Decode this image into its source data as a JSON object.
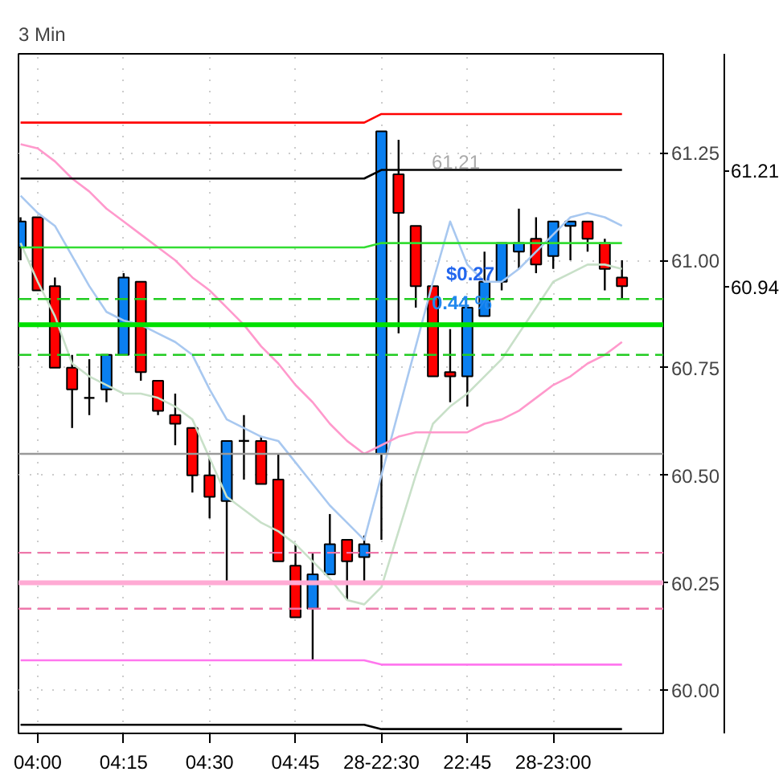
{
  "chart_data": {
    "type": "candlestick",
    "title": "3 Min",
    "categories": [
      null,
      "04:00",
      null,
      null,
      null,
      null,
      "04:15",
      null,
      null,
      null,
      null,
      "04:30",
      null,
      null,
      null,
      null,
      "04:45",
      null,
      null,
      null,
      null,
      "28-22:30",
      null,
      null,
      null,
      null,
      "22:45",
      null,
      null,
      null,
      null,
      "28-23:00",
      null,
      null,
      null,
      null
    ],
    "ohlc": [
      [
        61.03,
        61.1,
        61.0,
        61.09
      ],
      [
        61.1,
        61.1,
        60.93,
        60.93
      ],
      [
        60.94,
        60.96,
        60.75,
        60.75
      ],
      [
        60.75,
        60.78,
        60.61,
        60.7
      ],
      [
        60.68,
        60.77,
        60.64,
        60.68
      ],
      [
        60.7,
        60.78,
        60.67,
        60.78
      ],
      [
        60.78,
        60.97,
        60.78,
        60.96
      ],
      [
        60.95,
        60.95,
        60.72,
        60.74
      ],
      [
        60.72,
        60.72,
        60.64,
        60.65
      ],
      [
        60.64,
        60.69,
        60.57,
        60.62
      ],
      [
        60.61,
        60.61,
        60.46,
        60.5
      ],
      [
        60.5,
        60.54,
        60.4,
        60.45
      ],
      [
        60.44,
        60.58,
        60.25,
        60.58
      ],
      [
        60.58,
        60.64,
        60.49,
        60.58
      ],
      [
        60.58,
        60.59,
        60.48,
        60.48
      ],
      [
        60.49,
        60.55,
        60.3,
        60.3
      ],
      [
        60.29,
        60.34,
        60.17,
        60.17
      ],
      [
        60.19,
        60.32,
        60.07,
        60.27
      ],
      [
        60.27,
        60.41,
        60.27,
        60.34
      ],
      [
        60.35,
        60.35,
        60.21,
        60.3
      ],
      [
        60.31,
        60.36,
        60.25,
        60.34
      ],
      [
        60.55,
        61.3,
        60.35,
        61.3
      ],
      [
        61.2,
        61.28,
        60.83,
        61.11
      ],
      [
        61.08,
        61.08,
        60.89,
        60.94
      ],
      [
        60.94,
        60.94,
        60.73,
        60.73
      ],
      [
        60.74,
        60.84,
        60.67,
        60.73
      ],
      [
        60.73,
        60.89,
        60.66,
        60.89
      ],
      [
        60.87,
        61.02,
        60.87,
        60.95
      ],
      [
        60.95,
        61.04,
        60.93,
        61.04
      ],
      [
        61.02,
        61.12,
        60.98,
        61.04
      ],
      [
        61.05,
        61.1,
        60.97,
        60.99
      ],
      [
        61.01,
        61.09,
        60.98,
        61.09
      ],
      [
        61.08,
        61.09,
        61.0,
        61.09
      ],
      [
        61.09,
        61.09,
        61.02,
        61.05
      ],
      [
        61.04,
        61.05,
        60.93,
        60.98
      ],
      [
        60.96,
        61.0,
        60.91,
        60.94
      ]
    ],
    "colors": [
      "#0a7ff0",
      "#ff0000",
      "#ff0000",
      "#ff0000",
      "#000000",
      "#0a7ff0",
      "#0a7ff0",
      "#ff0000",
      "#ff0000",
      "#ff0000",
      "#ff0000",
      "#ff0000",
      "#0a7ff0",
      "#000000",
      "#ff0000",
      "#ff0000",
      "#ff0000",
      "#0a7ff0",
      "#0a7ff0",
      "#ff0000",
      "#0a7ff0",
      "#0a7ff0",
      "#ff0000",
      "#ff0000",
      "#ff0000",
      "#ff0000",
      "#0a7ff0",
      "#0a7ff0",
      "#0a7ff0",
      "#0a7ff0",
      "#ff0000",
      "#0a7ff0",
      "#0a7ff0",
      "#ff0000",
      "#ff0000",
      "#ff0000"
    ],
    "series": [
      {
        "type": "line",
        "color": "#a8c8f0",
        "values": [
          61.15,
          61.11,
          61.08,
          61.01,
          60.94,
          60.88,
          60.86,
          60.85,
          60.83,
          60.81,
          60.78,
          60.7,
          60.63,
          60.61,
          60.59,
          60.58,
          60.53,
          60.48,
          60.43,
          60.39,
          60.35,
          60.5,
          60.65,
          60.8,
          60.95,
          61.09,
          60.99,
          60.95,
          60.95,
          60.98,
          61.02,
          61.06,
          61.1,
          61.11,
          61.1,
          61.08
        ]
      },
      {
        "type": "line",
        "color": "#c8e0c8",
        "values": [
          61.04,
          60.95,
          60.87,
          60.76,
          60.73,
          60.71,
          60.69,
          60.69,
          60.68,
          60.66,
          60.63,
          60.54,
          60.45,
          60.42,
          60.39,
          60.37,
          60.34,
          60.3,
          60.26,
          60.21,
          60.2,
          60.24,
          60.37,
          60.5,
          60.62,
          60.66,
          60.69,
          60.73,
          60.77,
          60.83,
          60.89,
          60.95,
          60.97,
          60.99,
          60.99,
          60.98
        ]
      },
      {
        "type": "line",
        "color": "#ff99cc",
        "values": [
          61.27,
          61.26,
          61.23,
          61.19,
          61.16,
          61.12,
          61.09,
          61.06,
          61.03,
          61.0,
          60.96,
          60.93,
          60.89,
          60.85,
          60.8,
          60.76,
          60.71,
          60.67,
          60.62,
          60.58,
          60.55,
          60.57,
          60.59,
          60.6,
          60.6,
          60.6,
          60.6,
          60.62,
          60.63,
          60.65,
          60.68,
          60.71,
          60.73,
          60.76,
          60.78,
          60.81
        ]
      },
      {
        "type": "line",
        "color": "#ff0000",
        "values": [
          61.32,
          61.32,
          61.32,
          61.32,
          61.32,
          61.32,
          61.32,
          61.32,
          61.32,
          61.32,
          61.32,
          61.32,
          61.32,
          61.32,
          61.32,
          61.32,
          61.32,
          61.32,
          61.32,
          61.32,
          61.32,
          61.34,
          61.34,
          61.34,
          61.34,
          61.34,
          61.34,
          61.34,
          61.34,
          61.34,
          61.34,
          61.34,
          61.34,
          61.34,
          61.34,
          61.34
        ]
      },
      {
        "type": "line",
        "color": "#000000",
        "values": [
          61.19,
          61.19,
          61.19,
          61.19,
          61.19,
          61.19,
          61.19,
          61.19,
          61.19,
          61.19,
          61.19,
          61.19,
          61.19,
          61.19,
          61.19,
          61.19,
          61.19,
          61.19,
          61.19,
          61.19,
          61.19,
          61.21,
          61.21,
          61.21,
          61.21,
          61.21,
          61.21,
          61.21,
          61.21,
          61.21,
          61.21,
          61.21,
          61.21,
          61.21,
          61.21,
          61.21
        ]
      },
      {
        "type": "line",
        "color": "#33dd33",
        "values": [
          61.03,
          61.03,
          61.03,
          61.03,
          61.03,
          61.03,
          61.03,
          61.03,
          61.03,
          61.03,
          61.03,
          61.03,
          61.03,
          61.03,
          61.03,
          61.03,
          61.03,
          61.03,
          61.03,
          61.03,
          61.03,
          61.04,
          61.04,
          61.04,
          61.04,
          61.04,
          61.04,
          61.04,
          61.04,
          61.04,
          61.04,
          61.04,
          61.04,
          61.04,
          61.04,
          61.04
        ]
      },
      {
        "type": "line",
        "color": "#ff77ee",
        "values": [
          60.07,
          60.07,
          60.07,
          60.07,
          60.07,
          60.07,
          60.07,
          60.07,
          60.07,
          60.07,
          60.07,
          60.07,
          60.07,
          60.07,
          60.07,
          60.07,
          60.07,
          60.07,
          60.07,
          60.07,
          60.07,
          60.06,
          60.06,
          60.06,
          60.06,
          60.06,
          60.06,
          60.06,
          60.06,
          60.06,
          60.06,
          60.06,
          60.06,
          60.06,
          60.06,
          60.06
        ]
      },
      {
        "type": "line",
        "color": "#000000",
        "values": [
          59.92,
          59.92,
          59.92,
          59.92,
          59.92,
          59.92,
          59.92,
          59.92,
          59.92,
          59.92,
          59.92,
          59.92,
          59.92,
          59.92,
          59.92,
          59.92,
          59.92,
          59.92,
          59.92,
          59.92,
          59.92,
          59.91,
          59.91,
          59.91,
          59.91,
          59.91,
          59.91,
          59.91,
          59.91,
          59.91,
          59.91,
          59.91,
          59.91,
          59.91,
          59.91,
          59.91
        ]
      }
    ],
    "ref_lines": [
      {
        "axis": "y",
        "value": 60.85,
        "color": "#00e000",
        "line_style": "solid"
      },
      {
        "axis": "y",
        "value": 60.91,
        "color": "#22cc22",
        "line_style": "dashed"
      },
      {
        "axis": "y",
        "value": 60.78,
        "color": "#22cc22",
        "line_style": "dashed"
      },
      {
        "axis": "y",
        "value": 60.55,
        "color": "#999999",
        "line_style": "solid"
      },
      {
        "axis": "y",
        "value": 60.32,
        "color": "#ee77aa",
        "line_style": "dashed"
      },
      {
        "axis": "y",
        "value": 60.25,
        "color": "#ffaad4",
        "line_style": "solid"
      },
      {
        "axis": "y",
        "value": 60.19,
        "color": "#ee77aa",
        "line_style": "dashed"
      }
    ],
    "annotations": [
      "61.21",
      "$0.27",
      "0.44 %"
    ],
    "ylim": [
      59.9,
      61.48
    ],
    "yticks": [
      {
        "value": 60,
        "label": "60.00"
      },
      {
        "value": 60.25,
        "label": "60.25"
      },
      {
        "value": 60.5,
        "label": "60.50"
      },
      {
        "value": 60.75,
        "label": "60.75"
      },
      {
        "value": 61,
        "label": "61.00"
      },
      {
        "value": 61.25,
        "label": "61.25"
      }
    ],
    "y2lim": [
      59.905,
      61.48
    ],
    "y2ticks": [
      {
        "value": 61.21,
        "label": "61.21"
      },
      {
        "value": 60.94,
        "label": "60.94"
      }
    ],
    "grid": true
  }
}
